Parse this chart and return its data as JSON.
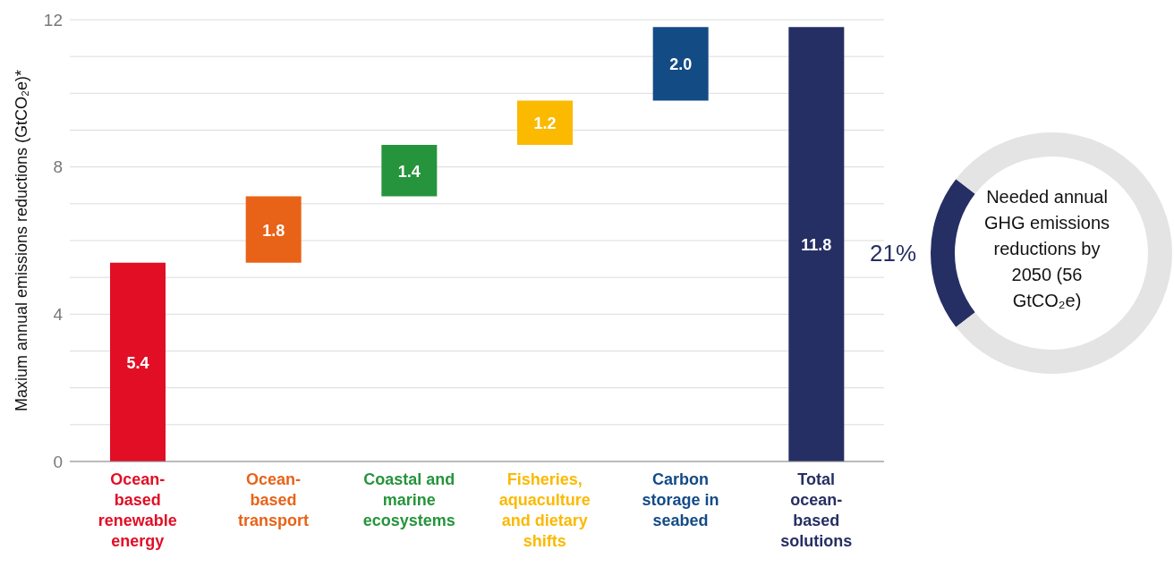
{
  "chart_data": [
    {
      "type": "bar",
      "ylabel": "Maxium annual emissions reductions (GtCO₂e)*",
      "categories": [
        "Ocean-based renewable energy",
        "Ocean-based transport",
        "Coastal and marine ecosystems",
        "Fisheries, aquaculture and dietary shifts",
        "Carbon storage in seabed",
        "Total ocean-based solutions"
      ],
      "values": [
        5.4,
        1.8,
        1.4,
        1.2,
        2.0,
        11.8
      ],
      "base": [
        0,
        5.4,
        7.2,
        8.6,
        9.8,
        0
      ],
      "colors": [
        "#e10e25",
        "#e86318",
        "#26943c",
        "#fbb900",
        "#134b85",
        "#262f63"
      ],
      "value_labels": [
        "5.4",
        "1.8",
        "1.4",
        "1.2",
        "2.0",
        "11.8"
      ],
      "ylim": [
        0,
        12
      ],
      "yticks": [
        0,
        {
          "value": 1,
          "label": null
        },
        {
          "value": 2,
          "label": null
        },
        {
          "value": 3,
          "label": null
        },
        4,
        {
          "value": 5,
          "label": null
        },
        {
          "value": 6,
          "label": null
        },
        {
          "value": 7,
          "label": null
        },
        8,
        {
          "value": 9,
          "label": null
        },
        {
          "value": 10,
          "label": null
        },
        {
          "value": 11,
          "label": null
        },
        12
      ],
      "grid": "y",
      "legend": false
    },
    {
      "type": "donut",
      "title": "Needed annual GHG emissions reductions by 2050 (56 GtCO₂e)",
      "categories": [
        null,
        null
      ],
      "values": [
        21,
        79
      ],
      "colors": [
        "#262f63",
        "#e3e4e3"
      ],
      "value_labels": [
        "21%",
        null
      ],
      "legend": false
    }
  ]
}
